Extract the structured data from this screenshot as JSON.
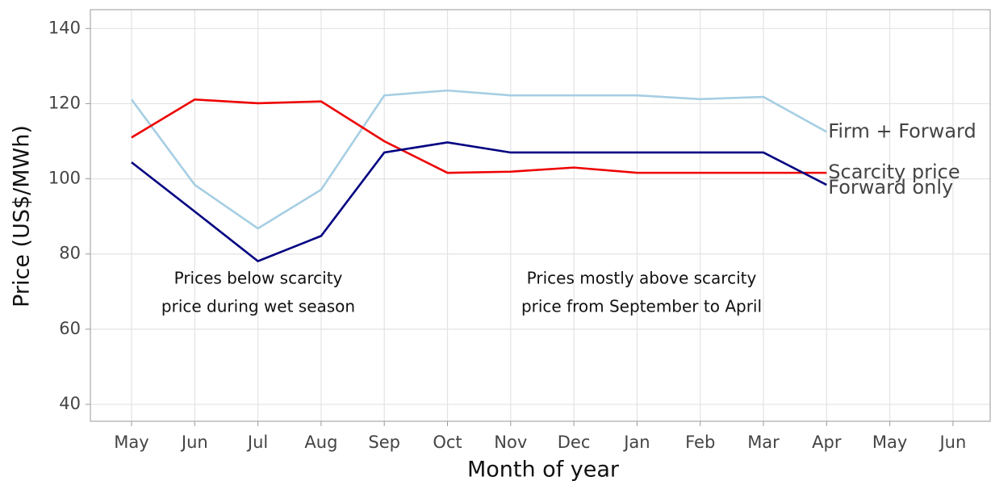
{
  "chart_data": {
    "type": "line",
    "x_label": "Month of year",
    "y_label": "Price (US$/MWh)",
    "categories": [
      "May",
      "Jun",
      "Jul",
      "Aug",
      "Sep",
      "Oct",
      "Nov",
      "Dec",
      "Jan",
      "Feb",
      "Mar",
      "Apr",
      "May",
      "Jun"
    ],
    "series": [
      {
        "name": "Firm + Forward",
        "color": "#a6cee3",
        "values": [
          121.1,
          98.4,
          86.8,
          97.1,
          122.2,
          123.5,
          122.2,
          122.2,
          122.2,
          121.2,
          121.8,
          112.5,
          null,
          null
        ]
      },
      {
        "name": "Scarcity price",
        "color": "#ee0000",
        "values": [
          111,
          121.1,
          120.1,
          120.6,
          110,
          101.6,
          101.9,
          103,
          101.6,
          101.6,
          101.6,
          101.6,
          null,
          null
        ]
      },
      {
        "name": "Forward only",
        "color": "#000080",
        "values": [
          104.4,
          91.3,
          78.1,
          84.8,
          107,
          109.7,
          107,
          107,
          107,
          107,
          107,
          98.4,
          null,
          null
        ]
      }
    ],
    "ylim": [
      35.5,
      145
    ],
    "yticks": [
      40,
      60,
      80,
      100,
      120,
      140
    ],
    "grid": true,
    "annotations": [
      {
        "lines": [
          "Prices below scarcity",
          "price during wet season"
        ]
      },
      {
        "lines": [
          "Prices mostly above scarcity",
          "price from September to April"
        ]
      }
    ]
  }
}
